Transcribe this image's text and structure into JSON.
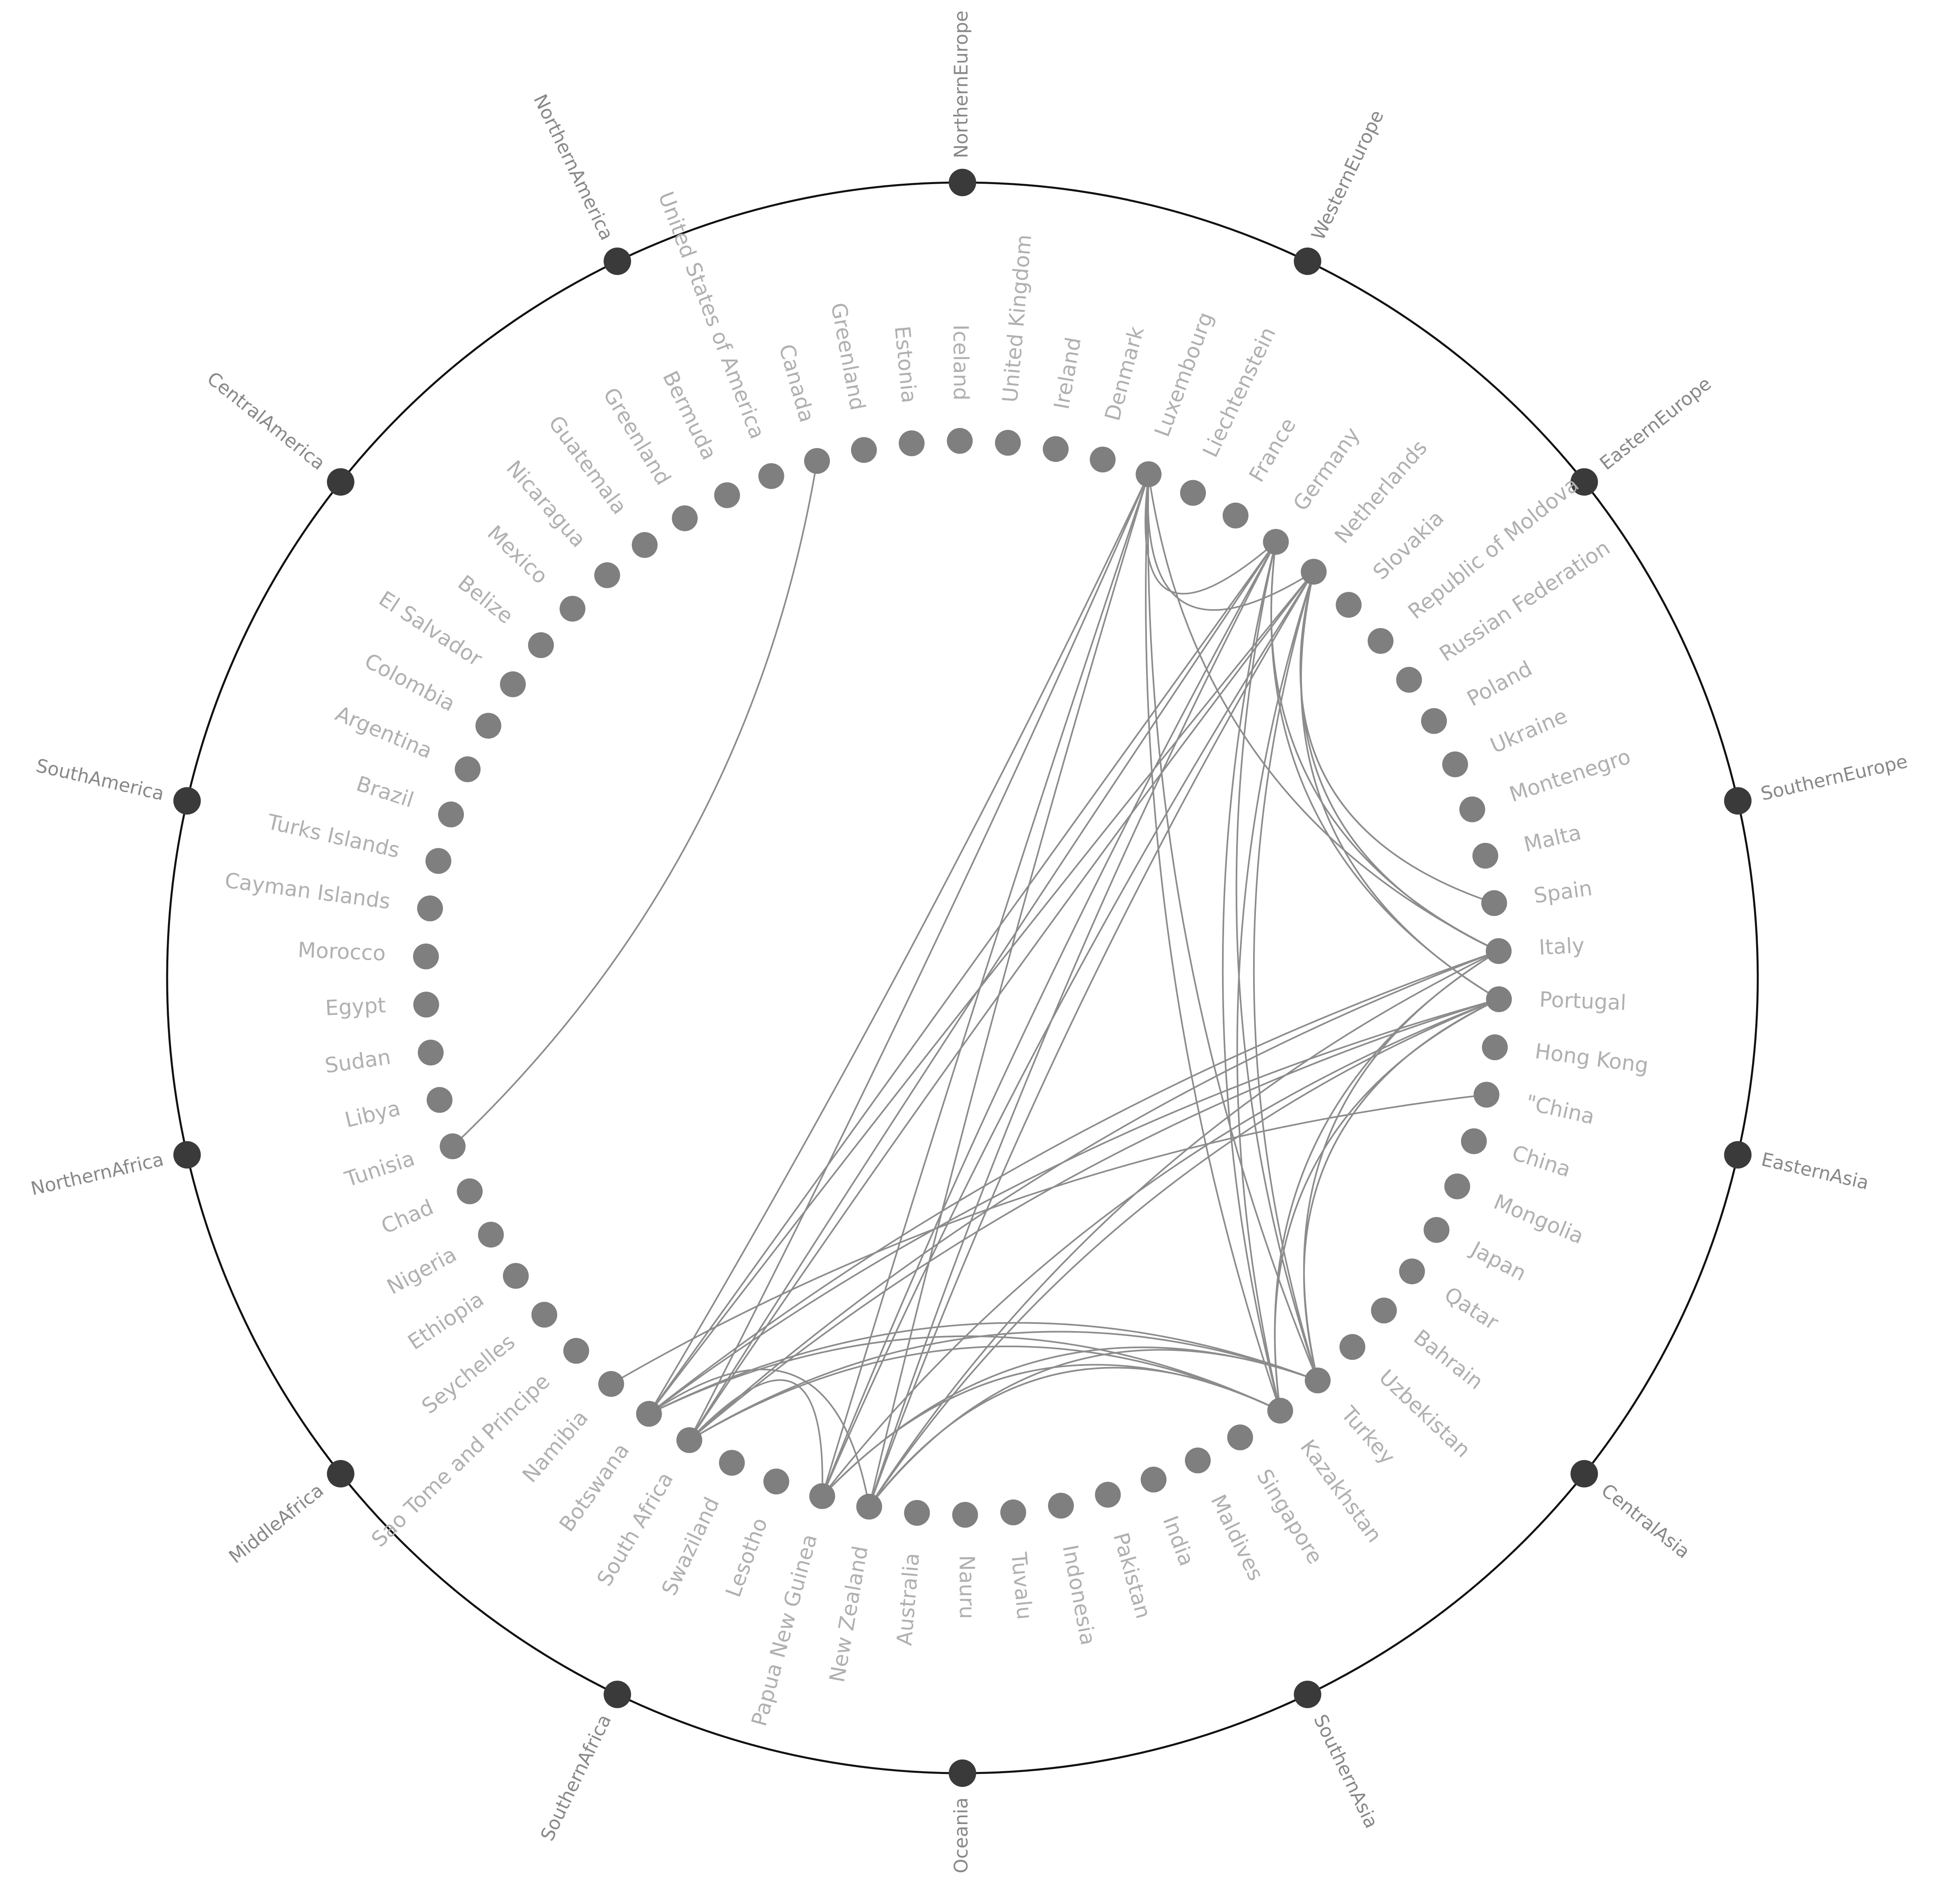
{
  "colors": {
    "background": "#ffffff",
    "outer_ring": "#111111",
    "region_node": "#3a3a3a",
    "country_node": "#7f7f7f",
    "link": "#8c8c8c",
    "region_label": "#888888",
    "country_label": "#b0b0b0"
  },
  "regions": [
    "NorthernEurope",
    "WesternEurope",
    "EasternEurope",
    "SouthernEurope",
    "EasternAsia",
    "CentralAsia",
    "SouthernAsia",
    "Oceania",
    "SouthernAfrica",
    "MiddleAfrica",
    "NorthernAfrica",
    "SouthAmerica",
    "CentralAmerica",
    "NorthernAmerica"
  ],
  "countries": [
    "Ireland",
    "Denmark",
    "Luxembourg",
    "Liechtenstein",
    "France",
    "Germany",
    "Netherlands",
    "Slovakia",
    "Republic of Moldova",
    "Russian Federation",
    "Poland",
    "Ukraine",
    "Montenegro",
    "Malta",
    "Spain",
    "Italy",
    "Portugal",
    "Hong Kong",
    "\"China",
    "China",
    "Mongolia",
    "Japan",
    "Qatar",
    "Bahrain",
    "Uzbekistan",
    "Turkey",
    "Kazakhstan",
    "Singapore",
    "Maldives",
    "India",
    "Pakistan",
    "Indonesia",
    "Tuvalu",
    "Nauru",
    "Australia",
    "New Zealand",
    "Papua New Guinea",
    "Lesotho",
    "Swaziland",
    "South Africa",
    "Botswana",
    "Namibia",
    "Sao Tome and Principe",
    "Seychelles",
    "Ethiopia",
    "Nigeria",
    "Chad",
    "Tunisia",
    "Libya",
    "Sudan",
    "Egypt",
    "Morocco",
    "Cayman Islands",
    "Turks Islands",
    "Brazil",
    "Argentina",
    "Colombia",
    "El Salvador",
    "Belize",
    "Mexico",
    "Nicaragua",
    "Guatemala",
    "Greenland",
    "Bermuda",
    "United States of America",
    "Canada",
    "Greenland",
    "Estonia",
    "Iceland",
    "United Kingdom"
  ],
  "links": [
    [
      "Luxembourg",
      "Botswana"
    ],
    [
      "Luxembourg",
      "South Africa"
    ],
    [
      "Luxembourg",
      "New Zealand"
    ],
    [
      "Luxembourg",
      "Papua New Guinea"
    ],
    [
      "Luxembourg",
      "Kazakhstan"
    ],
    [
      "Luxembourg",
      "Turkey"
    ],
    [
      "Luxembourg",
      "Italy"
    ],
    [
      "Luxembourg",
      "Germany"
    ],
    [
      "Luxembourg",
      "Netherlands"
    ],
    [
      "Germany",
      "Botswana"
    ],
    [
      "Germany",
      "South Africa"
    ],
    [
      "Germany",
      "New Zealand"
    ],
    [
      "Germany",
      "Papua New Guinea"
    ],
    [
      "Germany",
      "Kazakhstan"
    ],
    [
      "Germany",
      "Turkey"
    ],
    [
      "Germany",
      "Italy"
    ],
    [
      "Germany",
      "Portugal"
    ],
    [
      "Netherlands",
      "Botswana"
    ],
    [
      "Netherlands",
      "South Africa"
    ],
    [
      "Netherlands",
      "New Zealand"
    ],
    [
      "Netherlands",
      "Papua New Guinea"
    ],
    [
      "Netherlands",
      "Kazakhstan"
    ],
    [
      "Netherlands",
      "Turkey"
    ],
    [
      "Netherlands",
      "Italy"
    ],
    [
      "Netherlands",
      "Portugal"
    ],
    [
      "Netherlands",
      "Spain"
    ],
    [
      "Italy",
      "Botswana"
    ],
    [
      "Italy",
      "South Africa"
    ],
    [
      "Italy",
      "New Zealand"
    ],
    [
      "Italy",
      "Kazakhstan"
    ],
    [
      "Italy",
      "Turkey"
    ],
    [
      "Portugal",
      "Botswana"
    ],
    [
      "Portugal",
      "South Africa"
    ],
    [
      "Portugal",
      "New Zealand"
    ],
    [
      "Portugal",
      "Papua New Guinea"
    ],
    [
      "Portugal",
      "Kazakhstan"
    ],
    [
      "Portugal",
      "Turkey"
    ],
    [
      "\"China",
      "Namibia"
    ],
    [
      "Turkey",
      "Botswana"
    ],
    [
      "Turkey",
      "South Africa"
    ],
    [
      "Turkey",
      "New Zealand"
    ],
    [
      "Turkey",
      "Papua New Guinea"
    ],
    [
      "Kazakhstan",
      "Botswana"
    ],
    [
      "Kazakhstan",
      "South Africa"
    ],
    [
      "Kazakhstan",
      "New Zealand"
    ],
    [
      "Kazakhstan",
      "Papua New Guinea"
    ],
    [
      "Botswana",
      "New Zealand"
    ],
    [
      "South Africa",
      "Papua New Guinea"
    ],
    [
      "Canada",
      "Tunisia"
    ]
  ]
}
